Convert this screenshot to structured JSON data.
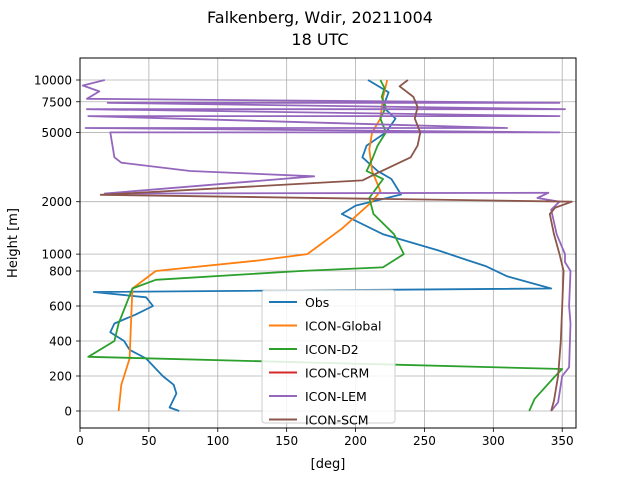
{
  "chart_data": {
    "type": "line",
    "title": "Falkenberg, Wdir, 20211004",
    "subtitle": "18 UTC",
    "xlabel": "[deg]",
    "ylabel": "Height [m]",
    "xlim": [
      0,
      360
    ],
    "x_ticks": [
      "0",
      "50",
      "100",
      "150",
      "200",
      "250",
      "300",
      "350"
    ],
    "y_ticks": [
      "0",
      "200",
      "400",
      "600",
      "800",
      "1000",
      "2000",
      "5000",
      "7500",
      "10000"
    ],
    "y_scale": "piecewise: linear below 800 m, log above",
    "grid": true,
    "legend_position": "lower center",
    "series": [
      {
        "name": "Obs",
        "color": "#1f77b4",
        "points": [
          [
            72,
            0
          ],
          [
            65,
            20
          ],
          [
            70,
            100
          ],
          [
            68,
            150
          ],
          [
            60,
            200
          ],
          [
            48,
            300
          ],
          [
            36,
            350
          ],
          [
            32,
            400
          ],
          [
            22,
            450
          ],
          [
            25,
            500
          ],
          [
            40,
            550
          ],
          [
            53,
            600
          ],
          [
            48,
            650
          ],
          [
            10,
            680
          ],
          [
            342,
            700
          ],
          [
            310,
            770
          ],
          [
            295,
            850
          ],
          [
            280,
            930
          ],
          [
            260,
            1050
          ],
          [
            220,
            1300
          ],
          [
            190,
            1700
          ],
          [
            200,
            1900
          ],
          [
            233,
            2200
          ],
          [
            226,
            2700
          ],
          [
            216,
            3000
          ],
          [
            205,
            3600
          ],
          [
            208,
            4200
          ],
          [
            222,
            5000
          ],
          [
            229,
            6000
          ],
          [
            220,
            7000
          ],
          [
            224,
            8500
          ],
          [
            209,
            10000
          ]
        ]
      },
      {
        "name": "ICON-Global",
        "color": "#ff7f0e",
        "points": [
          [
            28,
            0
          ],
          [
            30,
            150
          ],
          [
            32,
            200
          ],
          [
            36,
            300
          ],
          [
            37,
            500
          ],
          [
            38,
            700
          ],
          [
            55,
            800
          ],
          [
            130,
            920
          ],
          [
            165,
            1000
          ],
          [
            190,
            1400
          ],
          [
            212,
            2000
          ],
          [
            218,
            2300
          ],
          [
            212,
            3000
          ],
          [
            210,
            4000
          ],
          [
            212,
            5000
          ],
          [
            218,
            6000
          ],
          [
            220,
            8000
          ],
          [
            223,
            10000
          ]
        ]
      },
      {
        "name": "ICON-D2",
        "color": "#2ca02c",
        "points": [
          [
            326,
            0
          ],
          [
            330,
            70
          ],
          [
            345,
            200
          ],
          [
            350,
            240
          ],
          [
            6,
            310
          ],
          [
            25,
            400
          ],
          [
            28,
            500
          ],
          [
            33,
            600
          ],
          [
            38,
            700
          ],
          [
            55,
            750
          ],
          [
            160,
            800
          ],
          [
            220,
            840
          ],
          [
            235,
            1000
          ],
          [
            228,
            1300
          ],
          [
            213,
            1700
          ],
          [
            210,
            2100
          ],
          [
            220,
            2700
          ],
          [
            208,
            3000
          ],
          [
            212,
            3500
          ],
          [
            216,
            4200
          ],
          [
            222,
            5000
          ],
          [
            218,
            6000
          ],
          [
            222,
            7000
          ],
          [
            219,
            8000
          ],
          [
            221,
            9000
          ],
          [
            218,
            10000
          ]
        ]
      },
      {
        "name": "ICON-CRM",
        "color": "#d62728",
        "points": []
      },
      {
        "name": "ICON-LEM",
        "color": "#9467bd",
        "points": [
          [
            342,
            0
          ],
          [
            347,
            50
          ],
          [
            350,
            200
          ],
          [
            355,
            250
          ],
          [
            356,
            500
          ],
          [
            355,
            600
          ],
          [
            356,
            800
          ],
          [
            352,
            900
          ],
          [
            352,
            1000
          ],
          [
            346,
            1300
          ],
          [
            342,
            1800
          ],
          [
            348,
            2000
          ],
          [
            332,
            2100
          ],
          [
            340,
            2250
          ],
          [
            18,
            2230
          ],
          [
            95,
            2500
          ],
          [
            170,
            2800
          ],
          [
            80,
            3000
          ],
          [
            30,
            3350
          ],
          [
            25,
            3600
          ],
          [
            22,
            5000
          ],
          [
            348,
            5000
          ],
          [
            4,
            5300
          ],
          [
            310,
            5300
          ],
          [
            6,
            6200
          ],
          [
            348,
            6200
          ],
          [
            5,
            6800
          ],
          [
            352,
            6800
          ],
          [
            20,
            7400
          ],
          [
            348,
            7400
          ],
          [
            5,
            7800
          ],
          [
            14,
            8600
          ],
          [
            2,
            9300
          ],
          [
            18,
            10000
          ]
        ]
      },
      {
        "name": "ICON-SCM",
        "color": "#8c564b",
        "points": [
          [
            342,
            0
          ],
          [
            344,
            60
          ],
          [
            347,
            200
          ],
          [
            349,
            400
          ],
          [
            350,
            600
          ],
          [
            351,
            800
          ],
          [
            348,
            1000
          ],
          [
            344,
            1300
          ],
          [
            341,
            1700
          ],
          [
            345,
            1850
          ],
          [
            357,
            2000
          ],
          [
            15,
            2190
          ],
          [
            205,
            2650
          ],
          [
            215,
            2900
          ],
          [
            240,
            3600
          ],
          [
            245,
            4200
          ],
          [
            247,
            5000
          ],
          [
            243,
            6000
          ],
          [
            245,
            7000
          ],
          [
            242,
            8000
          ],
          [
            232,
            9200
          ],
          [
            238,
            10000
          ]
        ]
      }
    ]
  }
}
